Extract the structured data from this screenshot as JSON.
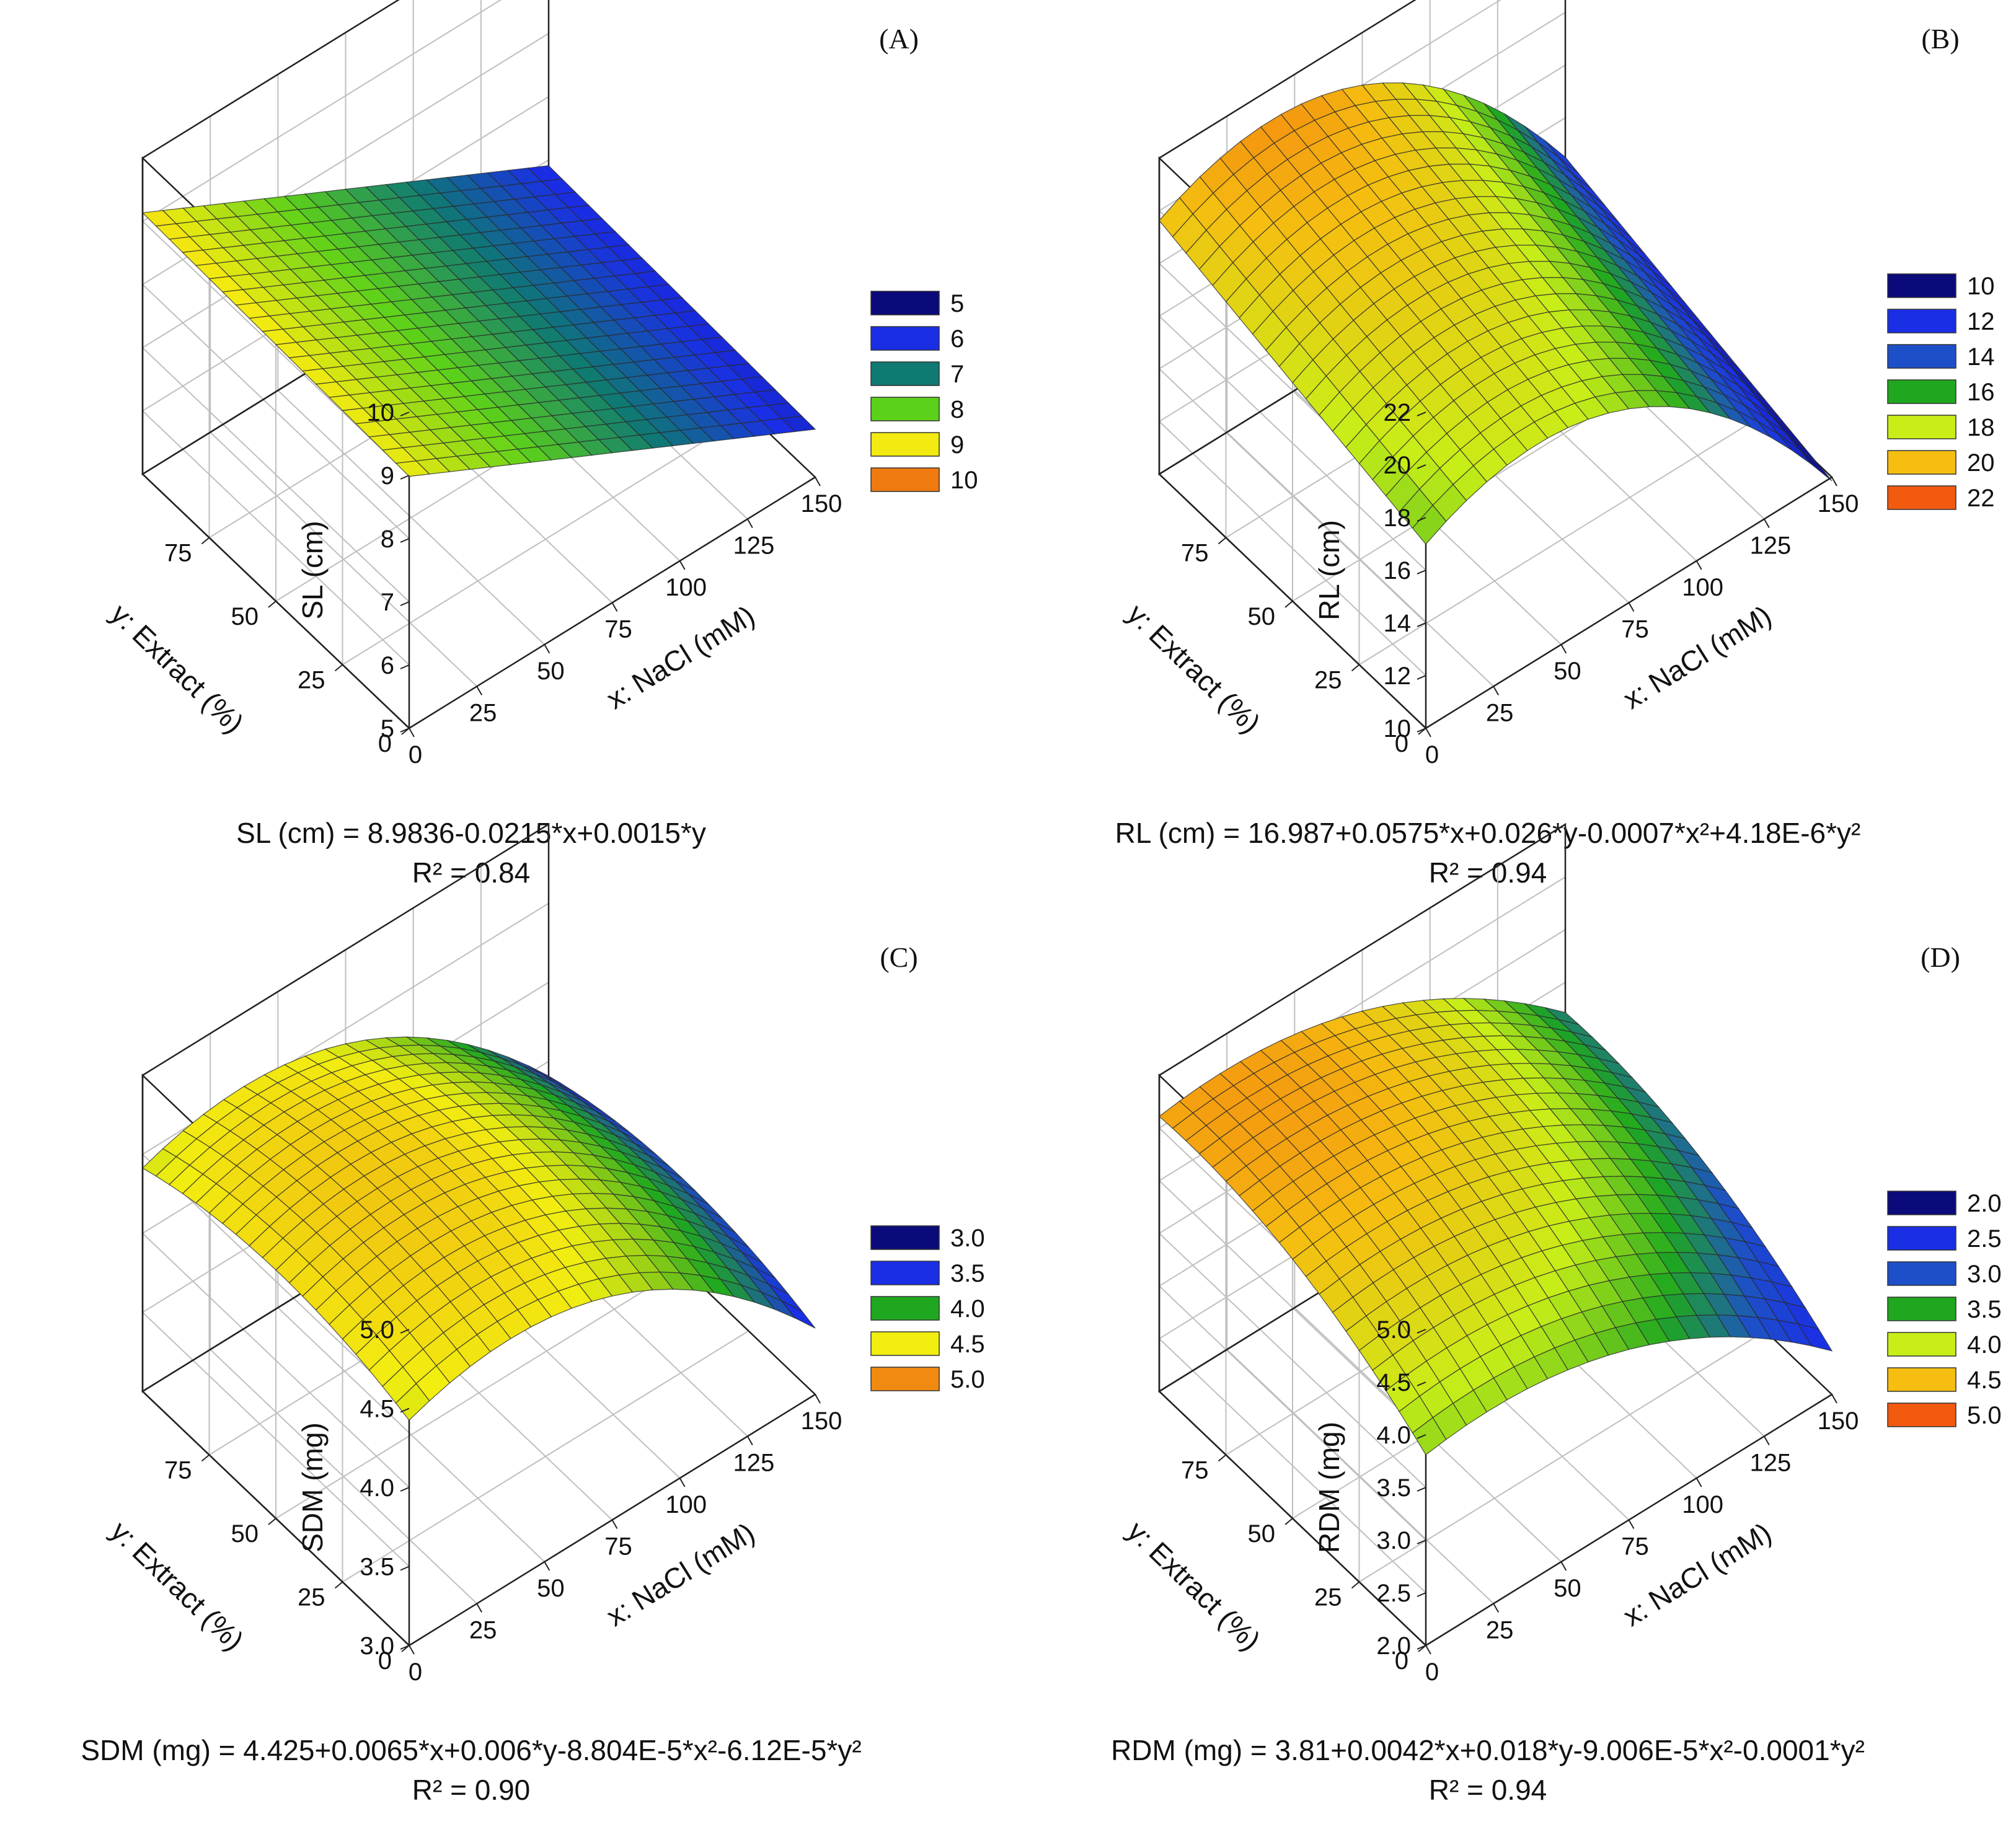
{
  "chart_data": [
    {
      "panel": "(A)",
      "type": "surface3d",
      "zlabel": "SL (cm)",
      "xlabel": "x: NaCl (mM)",
      "ylabel": "y: Extract (%)",
      "xlim": [
        0,
        150
      ],
      "ylim": [
        0,
        100
      ],
      "zlim": [
        5,
        10
      ],
      "x_ticks": [
        "0",
        "25",
        "50",
        "75",
        "100",
        "125",
        "150"
      ],
      "y_ticks": [
        "0",
        "25",
        "50",
        "75"
      ],
      "z_ticks": [
        "5",
        "6",
        "7",
        "8",
        "9",
        "10"
      ],
      "coefficients": {
        "c": 8.9836,
        "x": -0.0215,
        "y": 0.0015,
        "x2": 0,
        "y2": 0
      },
      "equation": "SL (cm) = 8.9836-0.0215*x+0.0015*y",
      "r2": "R² = 0.84",
      "legend": [
        {
          "label": "5",
          "color": "#0a0a7a"
        },
        {
          "label": "6",
          "color": "#1a2ee6"
        },
        {
          "label": "7",
          "color": "#0f7a72"
        },
        {
          "label": "8",
          "color": "#5cd11a"
        },
        {
          "label": "9",
          "color": "#f2ea10"
        },
        {
          "label": "10",
          "color": "#f07a10"
        }
      ]
    },
    {
      "panel": "(B)",
      "type": "surface3d",
      "zlabel": "RL (cm)",
      "xlabel": "x: NaCl (mM)",
      "ylabel": "y: Extract (%)",
      "xlim": [
        0,
        150
      ],
      "ylim": [
        0,
        100
      ],
      "zlim": [
        10,
        22
      ],
      "x_ticks": [
        "0",
        "25",
        "50",
        "75",
        "100",
        "125",
        "150"
      ],
      "y_ticks": [
        "0",
        "25",
        "50",
        "75"
      ],
      "z_ticks": [
        "10",
        "12",
        "14",
        "16",
        "18",
        "20",
        "22"
      ],
      "coefficients": {
        "c": 16.987,
        "x": 0.0575,
        "y": 0.026,
        "x2": -0.0007,
        "y2": 4.18e-06
      },
      "equation": "RL (cm) = 16.987+0.0575*x+0.026*y-0.0007*x²+4.18E-6*y²",
      "r2": "R² = 0.94",
      "legend": [
        {
          "label": "10",
          "color": "#0a0a7a"
        },
        {
          "label": "12",
          "color": "#1a2ee6"
        },
        {
          "label": "14",
          "color": "#1d4fc8"
        },
        {
          "label": "16",
          "color": "#1fa81f"
        },
        {
          "label": "18",
          "color": "#c8ee18"
        },
        {
          "label": "20",
          "color": "#f5be10"
        },
        {
          "label": "22",
          "color": "#f25a10"
        }
      ]
    },
    {
      "panel": "(C)",
      "type": "surface3d",
      "zlabel": "SDM (mg)",
      "xlabel": "x: NaCl (mM)",
      "ylabel": "y: Extract (%)",
      "xlim": [
        0,
        150
      ],
      "ylim": [
        0,
        100
      ],
      "zlim": [
        3.0,
        5.0
      ],
      "x_ticks": [
        "0",
        "25",
        "50",
        "75",
        "100",
        "125",
        "150"
      ],
      "y_ticks": [
        "0",
        "25",
        "50",
        "75"
      ],
      "z_ticks": [
        "3.0",
        "3.5",
        "4.0",
        "4.5",
        "5.0"
      ],
      "coefficients": {
        "c": 4.425,
        "x": 0.0065,
        "y": 0.006,
        "x2": -8.804e-05,
        "y2": -6.12e-05
      },
      "equation": "SDM (mg) = 4.425+0.0065*x+0.006*y-8.804E-5*x²-6.12E-5*y²",
      "r2": "R² = 0.90",
      "legend": [
        {
          "label": "3.0",
          "color": "#0a0a7a"
        },
        {
          "label": "3.5",
          "color": "#1a2ee6"
        },
        {
          "label": "4.0",
          "color": "#1fa81f"
        },
        {
          "label": "4.5",
          "color": "#f2ee10"
        },
        {
          "label": "5.0",
          "color": "#f08a10"
        }
      ]
    },
    {
      "panel": "(D)",
      "type": "surface3d",
      "zlabel": "RDM (mg)",
      "xlabel": "x: NaCl (mM)",
      "ylabel": "y: Extract (%)",
      "xlim": [
        0,
        150
      ],
      "ylim": [
        0,
        100
      ],
      "zlim": [
        2.0,
        5.0
      ],
      "x_ticks": [
        "0",
        "25",
        "50",
        "75",
        "100",
        "125",
        "150"
      ],
      "y_ticks": [
        "0",
        "25",
        "50",
        "75"
      ],
      "z_ticks": [
        "2.0",
        "2.5",
        "3.0",
        "3.5",
        "4.0",
        "4.5",
        "5.0"
      ],
      "coefficients": {
        "c": 3.81,
        "x": 0.0042,
        "y": 0.018,
        "x2": -9.006e-05,
        "y2": -0.0001
      },
      "equation": "RDM (mg) = 3.81+0.0042*x+0.018*y-9.006E-5*x²-0.0001*y²",
      "r2": "R² = 0.94",
      "legend": [
        {
          "label": "2.0",
          "color": "#0a0a7a"
        },
        {
          "label": "2.5",
          "color": "#1a2ee6"
        },
        {
          "label": "3.0",
          "color": "#1d4fc8"
        },
        {
          "label": "3.5",
          "color": "#1fa81f"
        },
        {
          "label": "4.0",
          "color": "#c8ee18"
        },
        {
          "label": "4.5",
          "color": "#f5be10"
        },
        {
          "label": "5.0",
          "color": "#f25a10"
        }
      ]
    }
  ]
}
